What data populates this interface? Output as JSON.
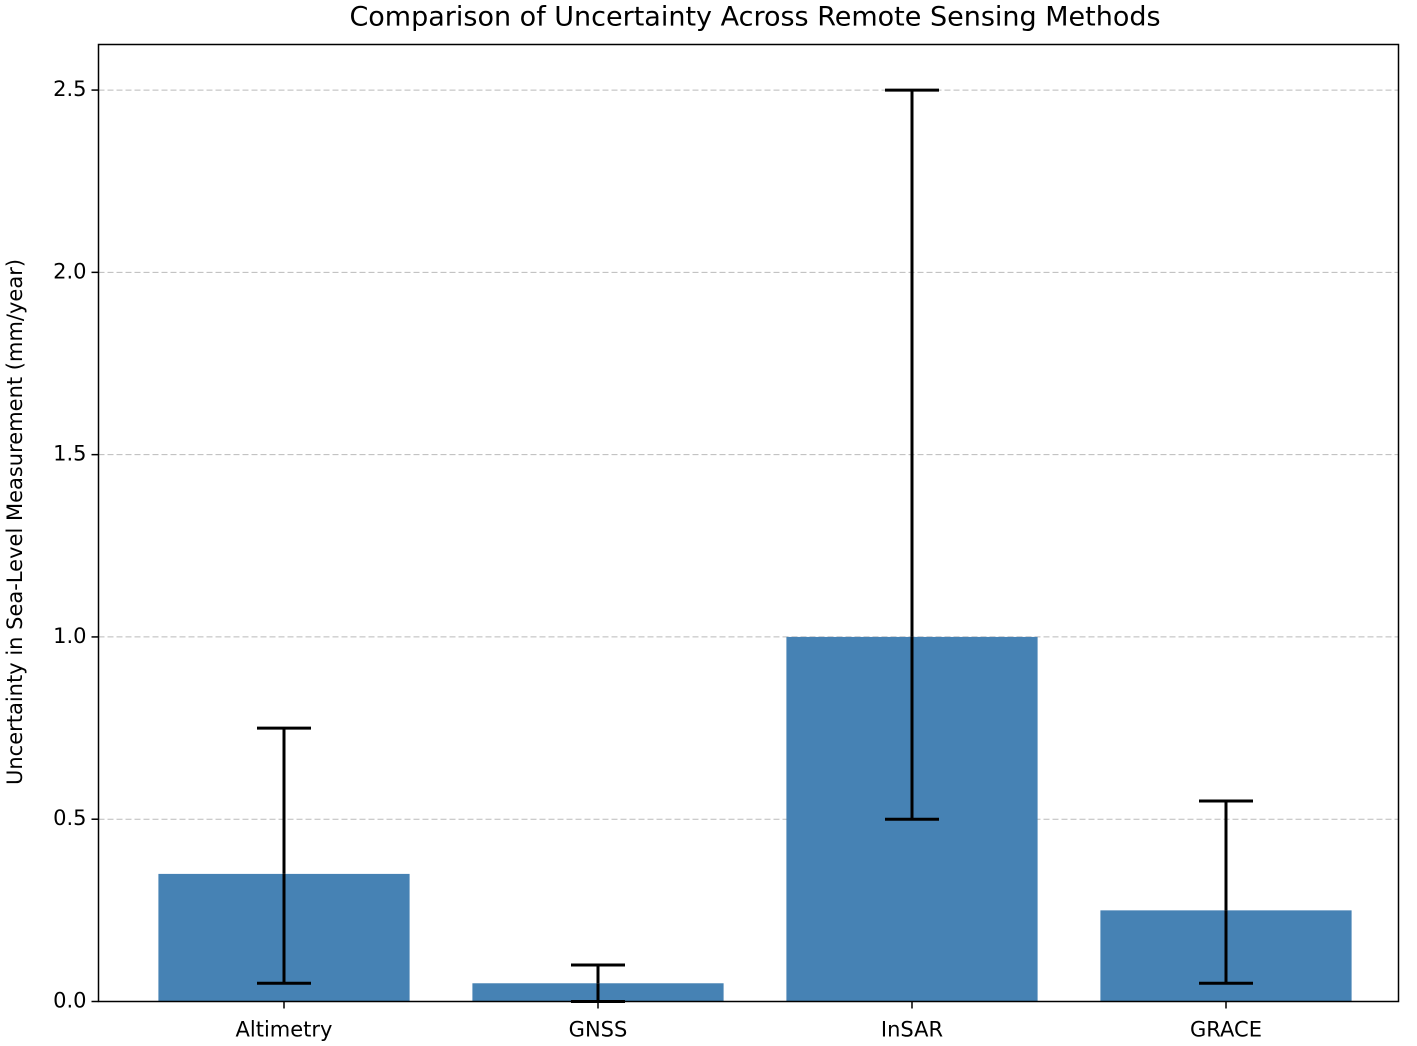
{
  "chart_data": {
    "type": "bar",
    "title": "Comparison of Uncertainty Across Remote Sensing Methods",
    "y_label": "Uncertainty in Sea-Level Measurement (mm/year)",
    "categories": [
      "Altimetry",
      "GNSS",
      "InSAR",
      "GRACE"
    ],
    "values": [
      0.35,
      0.05,
      1.0,
      0.25
    ],
    "errors_lower": [
      0.3,
      0.05,
      0.5,
      0.2
    ],
    "errors_upper": [
      0.4,
      0.05,
      1.5,
      0.3
    ],
    "color": "#4682b4",
    "error_color": "#000000",
    "ylim": [
      0,
      2.625
    ],
    "yticks": [
      {
        "value": 0,
        "label": "0.0"
      },
      0.5,
      {
        "value": 1,
        "label": "1.0"
      },
      1.5,
      {
        "value": 2,
        "label": "2.0"
      },
      2.5
    ],
    "grid": true
  }
}
